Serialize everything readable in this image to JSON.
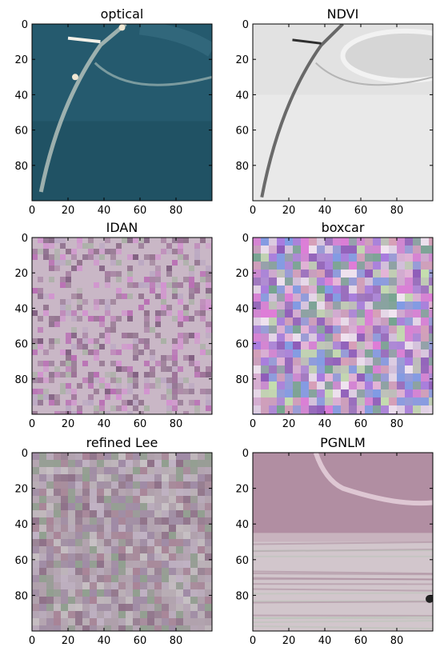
{
  "chart_data": [
    {
      "type": "heatmap",
      "title": "optical",
      "xlim": [
        0,
        100
      ],
      "ylim": [
        100,
        0
      ],
      "xticks": [
        "0",
        "20",
        "40",
        "60",
        "80"
      ],
      "yticks": [
        "0",
        "20",
        "40",
        "60",
        "80"
      ],
      "grid": false,
      "image_content": "optical"
    },
    {
      "type": "heatmap",
      "title": "NDVI",
      "xlim": [
        0,
        100
      ],
      "ylim": [
        100,
        0
      ],
      "xticks": [
        "0",
        "20",
        "40",
        "60",
        "80"
      ],
      "yticks": [
        "0",
        "20",
        "40",
        "60",
        "80"
      ],
      "grid": false,
      "image_content": "ndvi"
    },
    {
      "type": "heatmap",
      "title": "IDAN",
      "xlim": [
        0,
        100
      ],
      "ylim": [
        100,
        0
      ],
      "xticks": [
        "0",
        "20",
        "40",
        "60",
        "80"
      ],
      "yticks": [
        "0",
        "20",
        "40",
        "60",
        "80"
      ],
      "grid": false,
      "image_content": "idan"
    },
    {
      "type": "heatmap",
      "title": "boxcar",
      "xlim": [
        0,
        100
      ],
      "ylim": [
        100,
        0
      ],
      "xticks": [
        "0",
        "20",
        "40",
        "60",
        "80"
      ],
      "yticks": [
        "0",
        "20",
        "40",
        "60",
        "80"
      ],
      "grid": false,
      "image_content": "boxcar"
    },
    {
      "type": "heatmap",
      "title": "refined Lee",
      "xlim": [
        0,
        100
      ],
      "ylim": [
        100,
        0
      ],
      "xticks": [
        "0",
        "20",
        "40",
        "60",
        "80"
      ],
      "yticks": [
        "0",
        "20",
        "40",
        "60",
        "80"
      ],
      "grid": false,
      "image_content": "refinedlee"
    },
    {
      "type": "heatmap",
      "title": "PGNLM",
      "xlim": [
        0,
        100
      ],
      "ylim": [
        100,
        0
      ],
      "xticks": [
        "0",
        "20",
        "40",
        "60",
        "80"
      ],
      "yticks": [
        "0",
        "20",
        "40",
        "60",
        "80"
      ],
      "grid": false,
      "image_content": "pgnlm"
    }
  ]
}
